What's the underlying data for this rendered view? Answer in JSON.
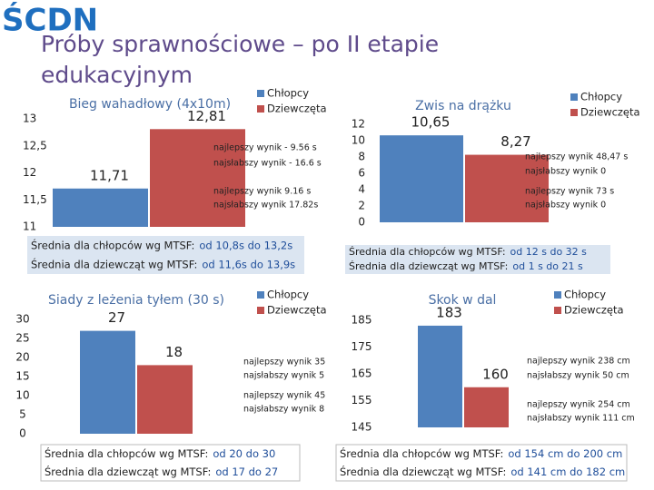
{
  "logo": "ŚCDN",
  "title": [
    "Próby sprawnościowe – po II etapie",
    "edukacyjnym"
  ],
  "chart_data": [
    {
      "type": "bar",
      "title": "Bieg wahadłowy (4x10m)",
      "categories": [
        null
      ],
      "series": [
        {
          "name": "Chłopcy",
          "color": "#4f81bd",
          "values": [
            11.71
          ],
          "value_labels": [
            "11,71"
          ]
        },
        {
          "name": "Dziewczęta",
          "color": "#c0504d",
          "values": [
            12.81
          ],
          "value_labels": [
            "12,81"
          ]
        }
      ],
      "ylim": [
        11,
        13
      ],
      "yticks": [
        11,
        {
          "value": 11.5,
          "label": "11,5"
        },
        12,
        {
          "value": 12.5,
          "label": "12,5"
        },
        13
      ],
      "annotations": [
        "najlepszy wynik - 9.56 s",
        "najsłabszy wynik - 16.6 s",
        "najlepszy wynik 9.16 s",
        "najsłabszy wynik 17.82s"
      ],
      "notes": [
        {
          "label": "Średnia dla chłopców wg MTSF:",
          "range": "od 10,8s do 13,2s"
        },
        {
          "label": "Średnia dla dziewcząt wg MTSF:",
          "range": "od 11,6s do 13,9s"
        }
      ]
    },
    {
      "type": "bar",
      "title": "Zwis na drążku",
      "categories": [
        null
      ],
      "series": [
        {
          "name": "Chłopcy",
          "color": "#4f81bd",
          "values": [
            10.65
          ],
          "value_labels": [
            "10,65"
          ]
        },
        {
          "name": "Dziewczęta",
          "color": "#c0504d",
          "values": [
            8.27
          ],
          "value_labels": [
            "8,27"
          ]
        }
      ],
      "ylim": [
        0,
        12
      ],
      "yticks": [
        0,
        2,
        4,
        6,
        8,
        10,
        12
      ],
      "annotations": [
        "najlepszy wynik 48,47 s",
        "najsłabszy wynik  0",
        "najlepszy wynik 73 s",
        "najsłabszy wynik  0"
      ],
      "notes": [
        {
          "label": "Średnia dla chłopców wg MTSF:",
          "range": "od 12 s do 32 s"
        },
        {
          "label": "Średnia dla dziewcząt wg MTSF:",
          "range": "od 1 s do 21 s"
        }
      ]
    },
    {
      "type": "bar",
      "title": "Siady z leżenia tyłem (30 s)",
      "categories": [
        null
      ],
      "series": [
        {
          "name": "Chłopcy",
          "color": "#4f81bd",
          "values": [
            27
          ]
        },
        {
          "name": "Dziewczęta",
          "color": "#c0504d",
          "values": [
            18
          ]
        }
      ],
      "ylim": [
        0,
        30
      ],
      "yticks": [
        0,
        5,
        10,
        15,
        20,
        25,
        30
      ],
      "annotations": [
        "najlepszy wynik 35",
        "najsłabszy wynik  5",
        "najlepszy wynik 45",
        "najsłabszy wynik 8"
      ],
      "notes": [
        {
          "label": "Średnia dla chłopców wg MTSF:",
          "range": "od 20 do 30"
        },
        {
          "label": "Średnia dla dziewcząt wg MTSF:",
          "range": "od 17 do 27"
        }
      ]
    },
    {
      "type": "bar",
      "title": "Skok w dal",
      "categories": [
        null
      ],
      "series": [
        {
          "name": "Chłopcy",
          "color": "#4f81bd",
          "values": [
            183
          ]
        },
        {
          "name": "Dziewczęta",
          "color": "#c0504d",
          "values": [
            160
          ]
        }
      ],
      "ylim": [
        145,
        185
      ],
      "yticks": [
        145,
        155,
        165,
        175,
        185
      ],
      "annotations": [
        "najlepszy wynik 238 cm",
        "najsłabszy wynik 50 cm",
        "najlepszy wynik 254 cm",
        "najsłabszy wynik 111 cm"
      ],
      "notes": [
        {
          "label": "Średnia dla chłopców wg MTSF:",
          "range": "od 154 cm do 200 cm"
        },
        {
          "label": "Średnia dla dziewcząt wg MTSF:",
          "range": "od 141 cm do 182 cm"
        }
      ]
    }
  ]
}
